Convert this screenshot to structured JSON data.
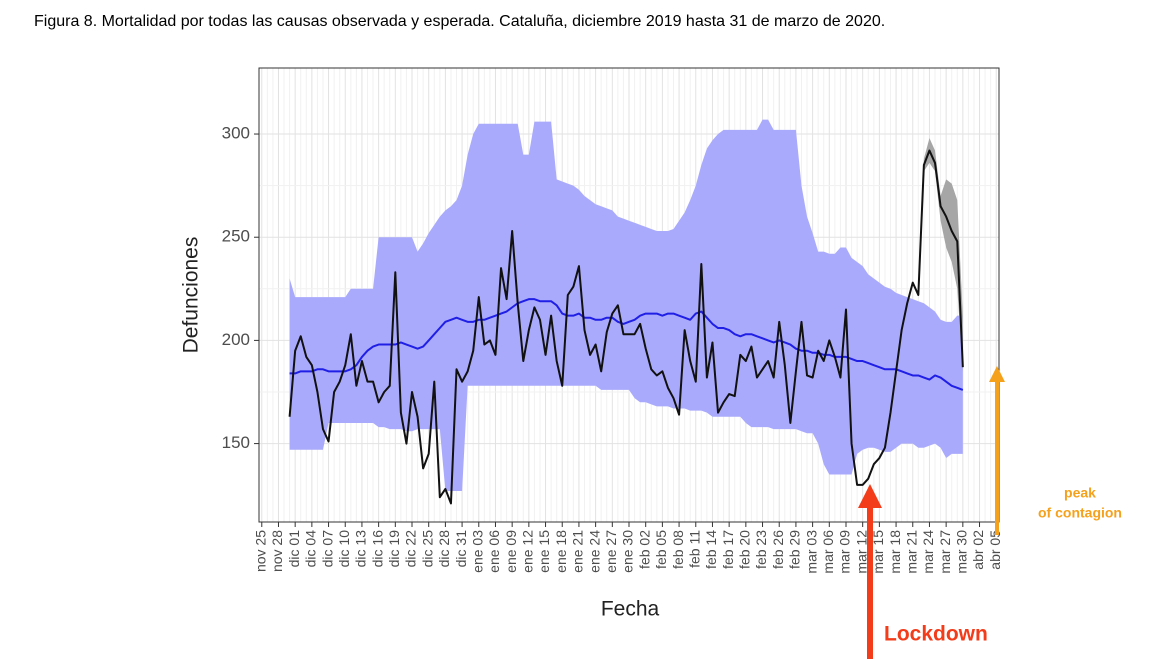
{
  "chart_data": {
    "type": "line",
    "title": "Figura 8. Mortalidad por todas las causas observada y esperada. Cataluña, diciembre 2019 hasta 31 de marzo de 2020.",
    "x_label": "Fecha",
    "y_label": "Defunciones",
    "categories": [
      "nov 25",
      null,
      null,
      "nov 28",
      null,
      null,
      "dic 01",
      null,
      null,
      "dic 04",
      null,
      null,
      "dic 07",
      null,
      null,
      "dic 10",
      null,
      null,
      "dic 13",
      null,
      null,
      "dic 16",
      null,
      null,
      "dic 19",
      null,
      null,
      "dic 22",
      null,
      null,
      "dic 25",
      null,
      null,
      "dic 28",
      null,
      null,
      "dic 31",
      null,
      null,
      "ene 03",
      null,
      null,
      "ene 06",
      null,
      null,
      "ene 09",
      null,
      null,
      "ene 12",
      null,
      null,
      "ene 15",
      null,
      null,
      "ene 18",
      null,
      null,
      "ene 21",
      null,
      null,
      "ene 24",
      null,
      null,
      "ene 27",
      null,
      null,
      "ene 30",
      null,
      null,
      "feb 02",
      null,
      null,
      "feb 05",
      null,
      null,
      "feb 08",
      null,
      null,
      "feb 11",
      null,
      null,
      "feb 14",
      null,
      null,
      "feb 17",
      null,
      null,
      "feb 20",
      null,
      null,
      "feb 23",
      null,
      null,
      "feb 26",
      null,
      null,
      "feb 29",
      null,
      null,
      "mar 03",
      null,
      null,
      "mar 06",
      null,
      null,
      "mar 09",
      null,
      null,
      "mar 12",
      null,
      null,
      "mar 15",
      null,
      null,
      "mar 18",
      null,
      null,
      "mar 21",
      null,
      null,
      "mar 24",
      null,
      null,
      "mar 27",
      null,
      null,
      "mar 30",
      null,
      null,
      "abr 02",
      null,
      null,
      "abr 05"
    ],
    "ylim": [
      112,
      332
    ],
    "yticks": [
      150,
      200,
      250,
      300
    ],
    "grid": true,
    "bands": [
      {
        "color": "#aaaafc",
        "lower": [
          null,
          null,
          null,
          null,
          null,
          147,
          147,
          147,
          147,
          147,
          147,
          147,
          160,
          160,
          160,
          160,
          160,
          160,
          160,
          160,
          160,
          158,
          158,
          157,
          157,
          157,
          156,
          156,
          157,
          157,
          157,
          157,
          157,
          127,
          127,
          127,
          127,
          178,
          178,
          178,
          178,
          178,
          178,
          178,
          178,
          178,
          178,
          178,
          178,
          178,
          178,
          178,
          178,
          178,
          178,
          178,
          178,
          178,
          178,
          178,
          178,
          176,
          176,
          176,
          176,
          176,
          176,
          172,
          170,
          170,
          169,
          168,
          168,
          168,
          167,
          167,
          167,
          166,
          166,
          166,
          165,
          163,
          163,
          163,
          163,
          163,
          163,
          160,
          158,
          158,
          158,
          158,
          157,
          157,
          157,
          157,
          157,
          156,
          155,
          155,
          150,
          140,
          135,
          135,
          135,
          135,
          135,
          145,
          147,
          148,
          148,
          147,
          146,
          146,
          148,
          150,
          150,
          150,
          148,
          148,
          149,
          150,
          148,
          143,
          145,
          145,
          145,
          null,
          null,
          null,
          null,
          null,
          null
        ],
        "upper": [
          null,
          null,
          null,
          null,
          null,
          230,
          221,
          221,
          221,
          221,
          221,
          221,
          221,
          221,
          221,
          221,
          225,
          225,
          225,
          225,
          225,
          250,
          250,
          250,
          250,
          250,
          250,
          250,
          243,
          247,
          252,
          256,
          260,
          263,
          265,
          268,
          275,
          290,
          300,
          305,
          305,
          305,
          305,
          305,
          305,
          305,
          305,
          290,
          290,
          306,
          306,
          306,
          306,
          278,
          277,
          276,
          275,
          273,
          270,
          268,
          266,
          265,
          264,
          263,
          260,
          259,
          258,
          257,
          256,
          255,
          254,
          253,
          253,
          253,
          254,
          258,
          262,
          268,
          275,
          285,
          293,
          297,
          300,
          302,
          302,
          302,
          302,
          302,
          302,
          302,
          307,
          307,
          302,
          302,
          302,
          302,
          302,
          275,
          260,
          252,
          243,
          243,
          242,
          242,
          245,
          245,
          240,
          238,
          236,
          232,
          230,
          228,
          226,
          225,
          223,
          222,
          221,
          220,
          219,
          218,
          216,
          214,
          210,
          209,
          209,
          212,
          212,
          null,
          null,
          null,
          null,
          null,
          null
        ]
      },
      {
        "color": "#a6a6a6",
        "lower": [
          null,
          null,
          null,
          null,
          null,
          null,
          null,
          null,
          null,
          null,
          null,
          null,
          null,
          null,
          null,
          null,
          null,
          null,
          null,
          null,
          null,
          null,
          null,
          null,
          null,
          null,
          null,
          null,
          null,
          null,
          null,
          null,
          null,
          null,
          null,
          null,
          null,
          null,
          null,
          null,
          null,
          null,
          null,
          null,
          null,
          null,
          null,
          null,
          null,
          null,
          null,
          null,
          null,
          null,
          null,
          null,
          null,
          null,
          null,
          null,
          null,
          null,
          null,
          null,
          null,
          null,
          null,
          null,
          null,
          null,
          null,
          null,
          null,
          null,
          null,
          null,
          null,
          null,
          null,
          null,
          null,
          null,
          null,
          null,
          null,
          null,
          null,
          null,
          null,
          null,
          null,
          null,
          null,
          null,
          null,
          null,
          null,
          null,
          null,
          null,
          null,
          null,
          null,
          null,
          null,
          null,
          null,
          null,
          null,
          null,
          null,
          null,
          null,
          null,
          null,
          null,
          null,
          null,
          220,
          282,
          286,
          282,
          258,
          245,
          238,
          225,
          185,
          null,
          null,
          null,
          null,
          null,
          null
        ],
        "upper": [
          null,
          null,
          null,
          null,
          null,
          null,
          null,
          null,
          null,
          null,
          null,
          null,
          null,
          null,
          null,
          null,
          null,
          null,
          null,
          null,
          null,
          null,
          null,
          null,
          null,
          null,
          null,
          null,
          null,
          null,
          null,
          null,
          null,
          null,
          null,
          null,
          null,
          null,
          null,
          null,
          null,
          null,
          null,
          null,
          null,
          null,
          null,
          null,
          null,
          null,
          null,
          null,
          null,
          null,
          null,
          null,
          null,
          null,
          null,
          null,
          null,
          null,
          null,
          null,
          null,
          null,
          null,
          null,
          null,
          null,
          null,
          null,
          null,
          null,
          null,
          null,
          null,
          null,
          null,
          null,
          null,
          null,
          null,
          null,
          null,
          null,
          null,
          null,
          null,
          null,
          null,
          null,
          null,
          null,
          null,
          null,
          null,
          null,
          null,
          null,
          null,
          null,
          null,
          null,
          null,
          null,
          null,
          null,
          null,
          null,
          null,
          null,
          null,
          null,
          null,
          null,
          null,
          null,
          225,
          288,
          298,
          292,
          270,
          278,
          276,
          268,
          212,
          null,
          null,
          null,
          null,
          null,
          null
        ]
      }
    ],
    "series": [
      {
        "color": "#1f1fe6",
        "values": [
          null,
          null,
          null,
          null,
          null,
          184,
          184,
          185,
          185,
          185,
          186,
          186,
          185,
          185,
          185,
          185,
          186,
          188,
          192,
          195,
          197,
          198,
          198,
          198,
          198,
          199,
          198,
          197,
          196,
          197,
          200,
          203,
          206,
          209,
          210,
          211,
          210,
          209,
          209,
          210,
          210,
          211,
          212,
          213,
          214,
          216,
          218,
          219,
          220,
          220,
          219,
          219,
          219,
          217,
          213,
          212,
          212,
          213,
          211,
          211,
          210,
          210,
          211,
          211,
          209,
          208,
          209,
          210,
          212,
          213,
          213,
          213,
          212,
          213,
          213,
          212,
          211,
          210,
          213,
          214,
          211,
          208,
          206,
          206,
          205,
          203,
          202,
          203,
          203,
          202,
          201,
          200,
          199,
          200,
          199,
          198,
          196,
          195,
          195,
          194,
          194,
          193,
          193,
          192,
          192,
          192,
          191,
          190,
          190,
          189,
          188,
          187,
          186,
          186,
          186,
          185,
          184,
          183,
          183,
          182,
          181,
          183,
          182,
          180,
          178,
          177,
          176,
          null,
          null,
          null,
          null,
          null,
          null
        ]
      },
      {
        "color": "#111111",
        "values": [
          null,
          null,
          null,
          null,
          null,
          163,
          195,
          202,
          192,
          188,
          175,
          157,
          151,
          175,
          180,
          188,
          203,
          178,
          190,
          180,
          180,
          170,
          175,
          178,
          233,
          165,
          150,
          175,
          163,
          138,
          145,
          180,
          124,
          128,
          121,
          186,
          180,
          185,
          195,
          221,
          198,
          200,
          193,
          235,
          220,
          253,
          218,
          190,
          205,
          216,
          210,
          193,
          212,
          190,
          178,
          222,
          226,
          236,
          205,
          193,
          198,
          185,
          204,
          213,
          217,
          203,
          203,
          203,
          208,
          196,
          186,
          183,
          185,
          177,
          172,
          164,
          205,
          190,
          180,
          237,
          182,
          199,
          165,
          170,
          174,
          173,
          193,
          190,
          197,
          182,
          186,
          190,
          182,
          209,
          188,
          160,
          185,
          209,
          183,
          182,
          195,
          190,
          200,
          192,
          182,
          215,
          150,
          130,
          130,
          133,
          140,
          143,
          148,
          165,
          185,
          205,
          218,
          228,
          222,
          285,
          292,
          286,
          265,
          260,
          253,
          248,
          187,
          null,
          null,
          null,
          null,
          null,
          null
        ]
      }
    ],
    "annotations": [
      {
        "lines": [
          "Lockdown"
        ],
        "color": "#f23c1a"
      },
      {
        "lines": [
          "peak",
          "of contagion"
        ],
        "color": "#f5a11c"
      }
    ]
  }
}
